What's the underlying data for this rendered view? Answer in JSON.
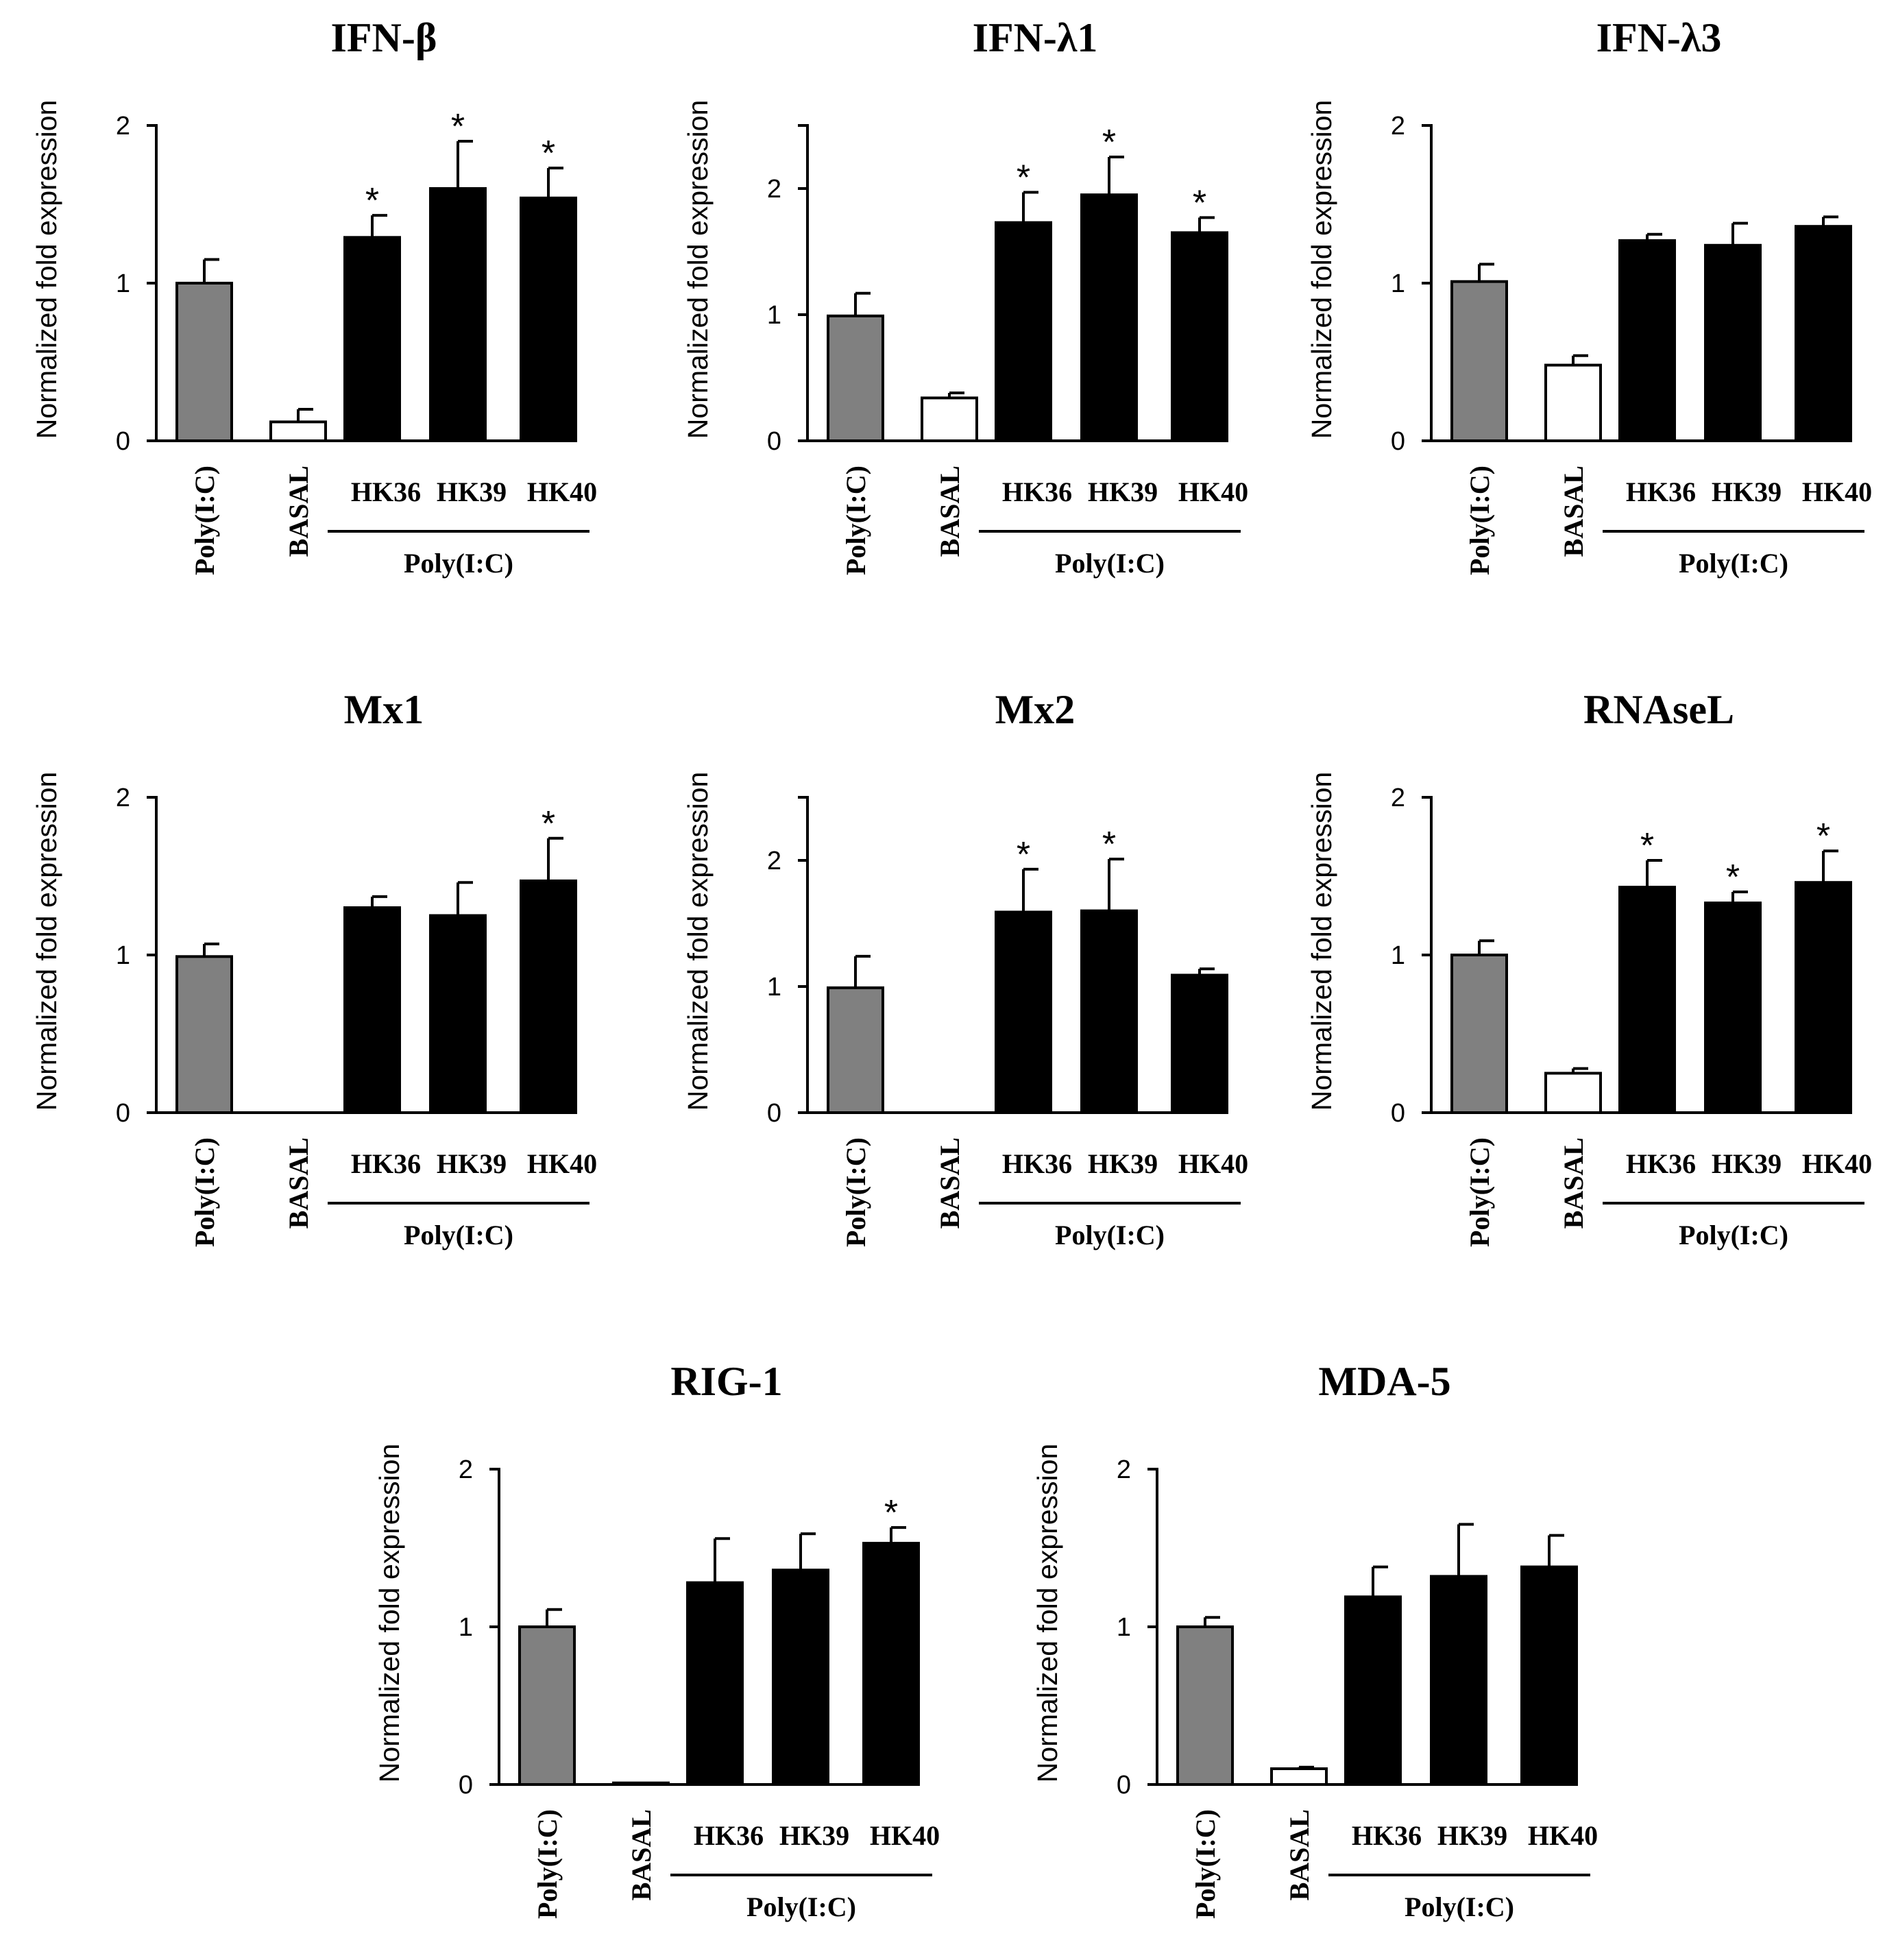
{
  "chart_data": [
    {
      "type": "bar",
      "title": "IFN-β",
      "ylabel": "Normalized  fold  expression",
      "xlabel": "",
      "ylim": [
        0,
        2
      ],
      "yticks": [
        0,
        1,
        2
      ],
      "categories": [
        "Poly(I:C)",
        "BASAL",
        "HK36",
        "HK39",
        "HK40"
      ],
      "group_label": "Poly(I:C)",
      "values": [
        1.0,
        0.12,
        1.29,
        1.6,
        1.54
      ],
      "errors": [
        0.15,
        0.08,
        0.14,
        0.3,
        0.19
      ],
      "significance": [
        "",
        "",
        "*",
        "*",
        "*"
      ],
      "colors": [
        "#808080",
        "#ffffff",
        "#000000",
        "#000000",
        "#000000"
      ]
    },
    {
      "type": "bar",
      "title": "IFN-λ1",
      "ylabel": "Normalized  fold  expression",
      "xlabel": "",
      "ylim": [
        0,
        2.5
      ],
      "yticks": [
        0,
        1,
        2
      ],
      "categories": [
        "Poly(I:C)",
        "BASAL",
        "HK36",
        "HK39",
        "HK40"
      ],
      "group_label": "Poly(I:C)",
      "values": [
        0.99,
        0.34,
        1.73,
        1.95,
        1.65
      ],
      "errors": [
        0.18,
        0.04,
        0.24,
        0.3,
        0.12
      ],
      "significance": [
        "",
        "",
        "*",
        "*",
        "*"
      ],
      "colors": [
        "#808080",
        "#ffffff",
        "#000000",
        "#000000",
        "#000000"
      ]
    },
    {
      "type": "bar",
      "title": "IFN-λ3",
      "ylabel": "Normalized  fold  expression",
      "xlabel": "",
      "ylim": [
        0,
        2
      ],
      "yticks": [
        0,
        1,
        2
      ],
      "categories": [
        "Poly(I:C)",
        "BASAL",
        "HK36",
        "HK39",
        "HK40"
      ],
      "group_label": "Poly(I:C)",
      "values": [
        1.01,
        0.48,
        1.27,
        1.24,
        1.36
      ],
      "errors": [
        0.11,
        0.06,
        0.04,
        0.14,
        0.06
      ],
      "significance": [
        "",
        "",
        "",
        "",
        ""
      ],
      "colors": [
        "#808080",
        "#ffffff",
        "#000000",
        "#000000",
        "#000000"
      ]
    },
    {
      "type": "bar",
      "title": "Mx1",
      "ylabel": "Normalized  fold  expression",
      "xlabel": "",
      "ylim": [
        0,
        2
      ],
      "yticks": [
        0,
        1,
        2
      ],
      "categories": [
        "Poly(I:C)",
        "BASAL",
        "HK36",
        "HK39",
        "HK40"
      ],
      "group_label": "Poly(I:C)",
      "values": [
        0.99,
        0.0,
        1.3,
        1.25,
        1.47
      ],
      "errors": [
        0.08,
        0.0,
        0.07,
        0.21,
        0.27
      ],
      "significance": [
        "",
        "",
        "",
        "",
        "*"
      ],
      "colors": [
        "#808080",
        "#ffffff",
        "#000000",
        "#000000",
        "#000000"
      ]
    },
    {
      "type": "bar",
      "title": "Mx2",
      "ylabel": "Normalized  fold  expression",
      "xlabel": "",
      "ylim": [
        0,
        2.5
      ],
      "yticks": [
        0,
        1,
        2
      ],
      "categories": [
        "Poly(I:C)",
        "BASAL",
        "HK36",
        "HK39",
        "HK40"
      ],
      "group_label": "Poly(I:C)",
      "values": [
        0.99,
        0.0,
        1.59,
        1.6,
        1.09
      ],
      "errors": [
        0.25,
        0.0,
        0.34,
        0.41,
        0.05
      ],
      "significance": [
        "",
        "",
        "*",
        "*",
        ""
      ],
      "colors": [
        "#808080",
        "#ffffff",
        "#000000",
        "#000000",
        "#000000"
      ]
    },
    {
      "type": "bar",
      "title": "RNAseL",
      "ylabel": "Normalized  fold  expression",
      "xlabel": "",
      "ylim": [
        0,
        2
      ],
      "yticks": [
        0,
        1,
        2
      ],
      "categories": [
        "Poly(I:C)",
        "BASAL",
        "HK36",
        "HK39",
        "HK40"
      ],
      "group_label": "Poly(I:C)",
      "values": [
        1.0,
        0.25,
        1.43,
        1.33,
        1.46
      ],
      "errors": [
        0.09,
        0.03,
        0.17,
        0.07,
        0.2
      ],
      "significance": [
        "",
        "",
        "*",
        "*",
        "*"
      ],
      "colors": [
        "#808080",
        "#ffffff",
        "#000000",
        "#000000",
        "#000000"
      ]
    },
    {
      "type": "bar",
      "title": "RIG-1",
      "ylabel": "Normalized  fold  expression",
      "xlabel": "",
      "ylim": [
        0,
        2
      ],
      "yticks": [
        0,
        1,
        2
      ],
      "categories": [
        "Poly(I:C)",
        "BASAL",
        "HK36",
        "HK39",
        "HK40"
      ],
      "group_label": "Poly(I:C)",
      "values": [
        1.0,
        0.01,
        1.28,
        1.36,
        1.53
      ],
      "errors": [
        0.11,
        0.0,
        0.28,
        0.23,
        0.1
      ],
      "significance": [
        "",
        "",
        "",
        "",
        "*"
      ],
      "colors": [
        "#808080",
        "#ffffff",
        "#000000",
        "#000000",
        "#000000"
      ]
    },
    {
      "type": "bar",
      "title": "MDA-5",
      "ylabel": "Normalized  fold  expression",
      "xlabel": "",
      "ylim": [
        0,
        2
      ],
      "yticks": [
        0,
        1,
        2
      ],
      "categories": [
        "Poly(I:C)",
        "BASAL",
        "HK36",
        "HK39",
        "HK40"
      ],
      "group_label": "Poly(I:C)",
      "values": [
        1.0,
        0.1,
        1.19,
        1.32,
        1.38
      ],
      "errors": [
        0.06,
        0.01,
        0.19,
        0.33,
        0.2
      ],
      "significance": [
        "",
        "",
        "",
        "",
        ""
      ],
      "colors": [
        "#808080",
        "#ffffff",
        "#000000",
        "#000000",
        "#000000"
      ]
    }
  ]
}
